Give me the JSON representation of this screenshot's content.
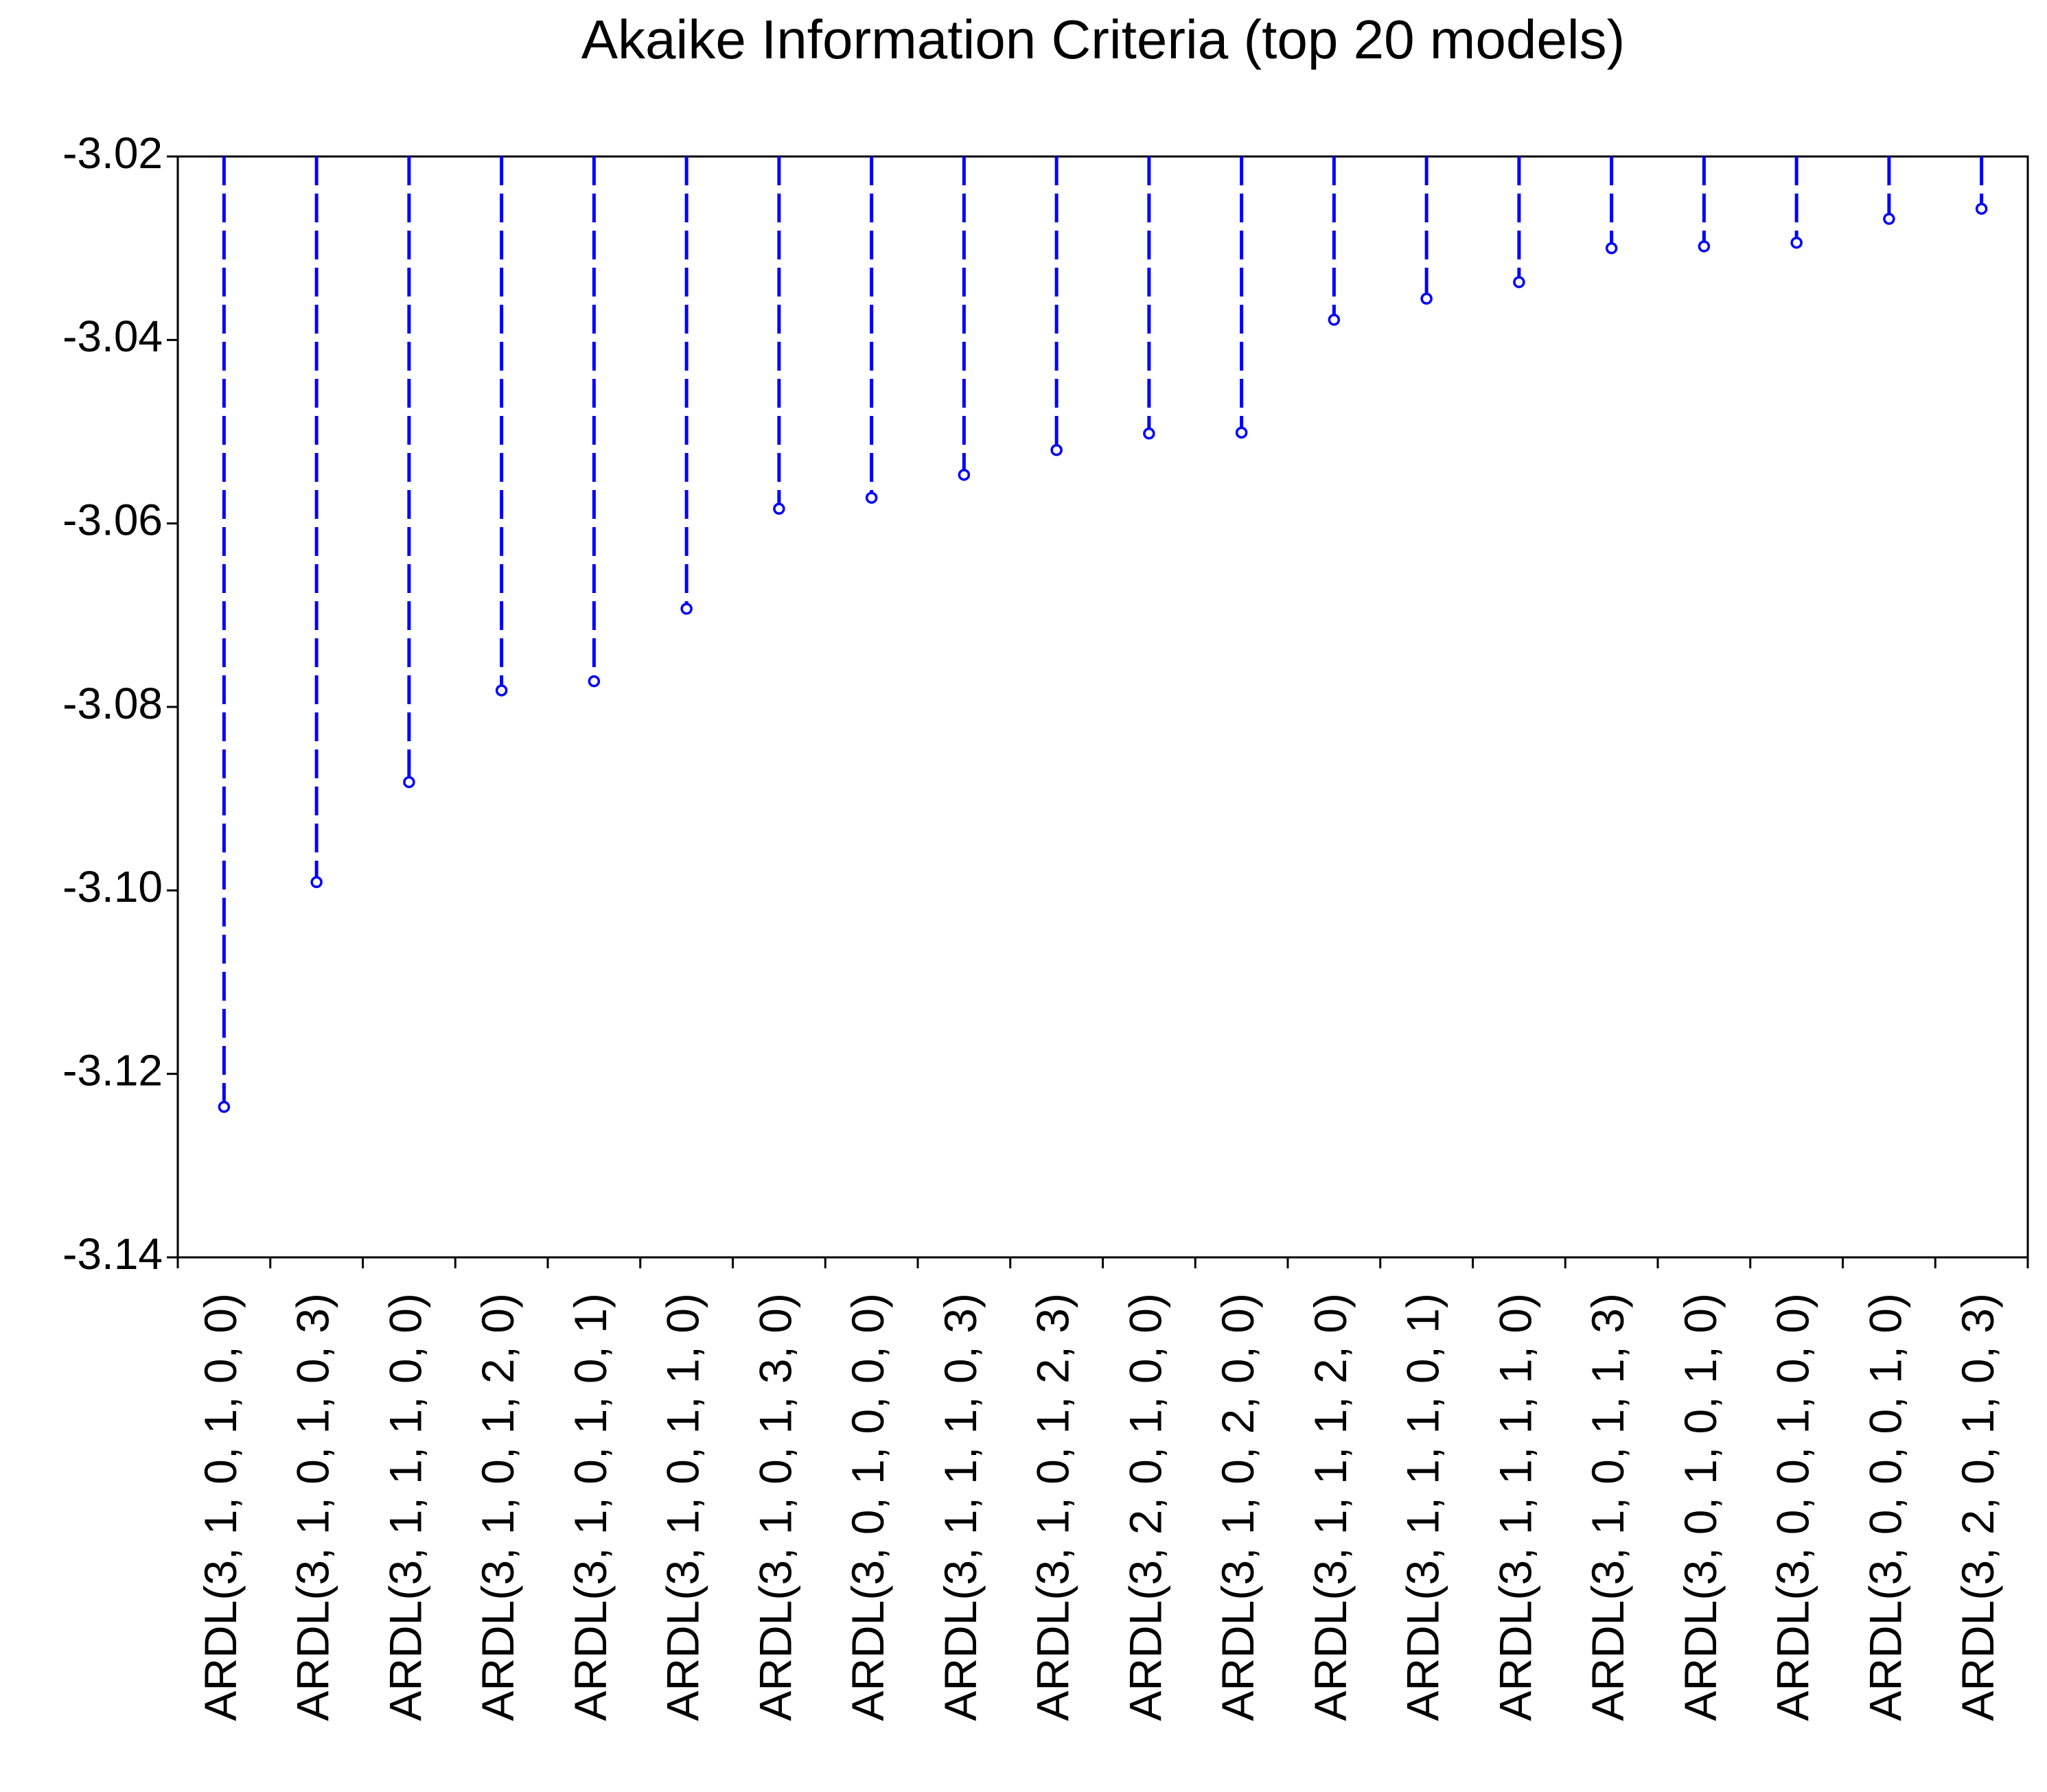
{
  "chart_data": {
    "type": "stem",
    "title": "Akaike Information Criteria (top 20 models)",
    "categories": [
      "ARDL(3, 1, 0, 1, 0, 0)",
      "ARDL(3, 1, 0, 1, 0, 3)",
      "ARDL(3, 1, 1, 1, 0, 0)",
      "ARDL(3, 1, 0, 1, 2, 0)",
      "ARDL(3, 1, 0, 1, 0, 1)",
      "ARDL(3, 1, 0, 1, 1, 0)",
      "ARDL(3, 1, 0, 1, 3, 0)",
      "ARDL(3, 0, 1, 0, 0, 0)",
      "ARDL(3, 1, 1, 1, 0, 3)",
      "ARDL(3, 1, 0, 1, 2, 3)",
      "ARDL(3, 2, 0, 1, 0, 0)",
      "ARDL(3, 1, 0, 2, 0, 0)",
      "ARDL(3, 1, 1, 1, 2, 0)",
      "ARDL(3, 1, 1, 1, 0, 1)",
      "ARDL(3, 1, 1, 1, 1, 0)",
      "ARDL(3, 1, 0, 1, 1, 3)",
      "ARDL(3, 0, 1, 0, 1, 0)",
      "ARDL(3, 0, 0, 1, 0, 0)",
      "ARDL(3, 0, 0, 0, 1, 0)",
      "ARDL(3, 2, 0, 1, 0, 3)"
    ],
    "values": [
      -3.1236,
      -3.0991,
      -3.0882,
      -3.0782,
      -3.0772,
      -3.0693,
      -3.0584,
      -3.0572,
      -3.0547,
      -3.052,
      -3.0502,
      -3.0501,
      -3.0378,
      -3.0355,
      -3.0337,
      -3.03,
      -3.0298,
      -3.0294,
      -3.0268,
      -3.0257
    ],
    "color": "#0000ff",
    "ylim": [
      -3.14,
      -3.02
    ],
    "yticks": [
      -3.02,
      -3.04,
      -3.06,
      -3.08,
      {
        "value": -3.1,
        "label": "-3.10"
      },
      -3.12,
      -3.14
    ]
  }
}
